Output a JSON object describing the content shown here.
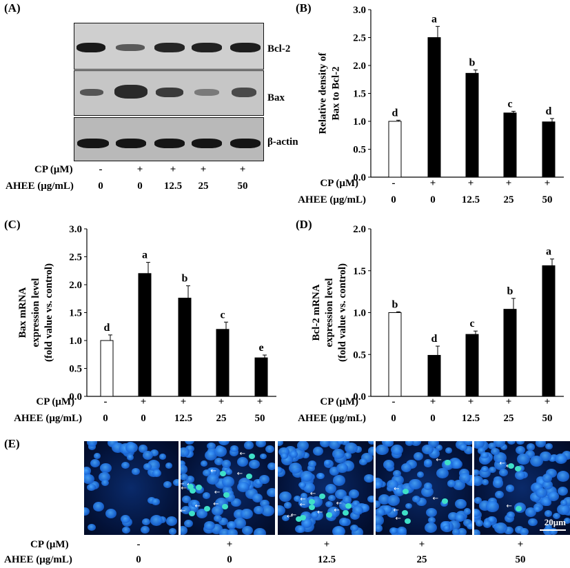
{
  "panels": {
    "A": "(A)",
    "B": "(B)",
    "C": "(C)",
    "D": "(D)",
    "E": "(E)"
  },
  "treatments": {
    "cp_label": "CP (μM)",
    "ahee_label": "AHEE (μg/mL)",
    "cp": [
      "-",
      "+",
      "+",
      "+",
      "+"
    ],
    "ahee": [
      "0",
      "0",
      "12.5",
      "25",
      "50"
    ]
  },
  "blot": {
    "labels": [
      "Bcl-2",
      "Bax",
      "β-actin"
    ]
  },
  "micrograph": {
    "scale_bar": "20μm"
  },
  "colors": {
    "control_bar": "#ffffff",
    "treated_bar": "#000000",
    "nuclei": "#1e6fe0",
    "apoptotic": "#3fe0c8"
  },
  "chart_data": [
    {
      "id": "B",
      "type": "bar",
      "categories": [
        "0",
        "0",
        "12.5",
        "25",
        "50"
      ],
      "values": [
        1.0,
        2.5,
        1.86,
        1.15,
        0.99
      ],
      "errors": [
        0.02,
        0.2,
        0.06,
        0.03,
        0.06
      ],
      "letters": [
        "d",
        "a",
        "b",
        "c",
        "d"
      ],
      "ylabel": [
        "Relative density of",
        "Bax to Bcl-2"
      ],
      "ylim": [
        0,
        3.0
      ],
      "yticks": [
        "0.0",
        "0.5",
        "1.0",
        "1.5",
        "2.0",
        "2.5",
        "3.0"
      ]
    },
    {
      "id": "C",
      "type": "bar",
      "categories": [
        "0",
        "0",
        "12.5",
        "25",
        "50"
      ],
      "values": [
        1.0,
        2.2,
        1.76,
        1.2,
        0.69
      ],
      "errors": [
        0.1,
        0.2,
        0.22,
        0.13,
        0.05
      ],
      "letters": [
        "d",
        "a",
        "b",
        "c",
        "e"
      ],
      "ylabel": [
        "Bax mRNA",
        "expression level",
        "(fold value vs. control)"
      ],
      "ylim": [
        0,
        3.0
      ],
      "yticks": [
        "0.0",
        "0.5",
        "1.0",
        "1.5",
        "2.0",
        "2.5",
        "3.0"
      ]
    },
    {
      "id": "D",
      "type": "bar",
      "categories": [
        "0",
        "0",
        "12.5",
        "25",
        "50"
      ],
      "values": [
        1.0,
        0.49,
        0.74,
        1.04,
        1.56
      ],
      "errors": [
        0.01,
        0.11,
        0.04,
        0.13,
        0.08
      ],
      "letters": [
        "b",
        "d",
        "c",
        "b",
        "a"
      ],
      "ylabel": [
        "Bcl-2 mRNA",
        "expression level",
        "(fold value vs. control)"
      ],
      "ylim": [
        0,
        2.0
      ],
      "yticks": [
        "0.0",
        "0.5",
        "1.0",
        "1.5",
        "2.0"
      ]
    }
  ]
}
